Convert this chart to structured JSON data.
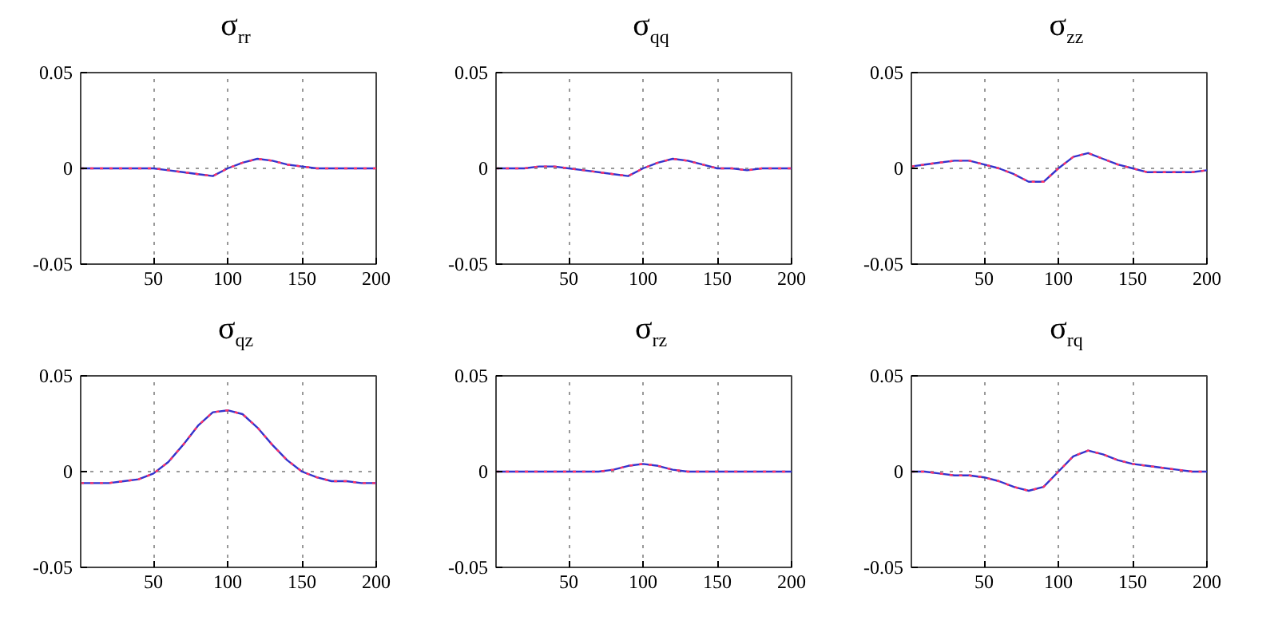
{
  "chart_data": [
    {
      "type": "line",
      "title": "σ$_{rr}$",
      "x": [
        1,
        10,
        20,
        30,
        40,
        50,
        60,
        70,
        80,
        90,
        100,
        110,
        120,
        130,
        140,
        150,
        160,
        170,
        180,
        190,
        200
      ],
      "xlim": [
        1,
        200
      ],
      "xticks": [
        50,
        100,
        150,
        200
      ],
      "ylim": [
        -0.05,
        0.05
      ],
      "yticks": [
        -0.05,
        0,
        0.05
      ],
      "grid": true,
      "series": [
        {
          "color": "#3333cc",
          "line_style": "solid",
          "values": [
            0,
            0,
            0,
            0,
            0,
            0,
            -0.001,
            -0.002,
            -0.003,
            -0.004,
            0,
            0.003,
            0.005,
            0.004,
            0.002,
            0.001,
            0,
            0,
            0,
            0,
            0
          ]
        },
        {
          "color": "#ff3366",
          "line_style": "dotted",
          "values": [
            0,
            0,
            0,
            0,
            0,
            0,
            -0.001,
            -0.002,
            -0.003,
            -0.004,
            0,
            0.003,
            0.005,
            0.004,
            0.002,
            0.001,
            0,
            0,
            0,
            0,
            0
          ]
        }
      ]
    },
    {
      "type": "line",
      "title": "σ$_{qq}$",
      "x": [
        1,
        10,
        20,
        30,
        40,
        50,
        60,
        70,
        80,
        90,
        100,
        110,
        120,
        130,
        140,
        150,
        160,
        170,
        180,
        190,
        200
      ],
      "xlim": [
        1,
        200
      ],
      "xticks": [
        50,
        100,
        150,
        200
      ],
      "ylim": [
        -0.05,
        0.05
      ],
      "yticks": [
        -0.05,
        0,
        0.05
      ],
      "grid": true,
      "series": [
        {
          "color": "#3333cc",
          "line_style": "solid",
          "values": [
            0,
            0,
            0,
            0.001,
            0.001,
            0,
            -0.001,
            -0.002,
            -0.003,
            -0.004,
            0,
            0.003,
            0.005,
            0.004,
            0.002,
            0,
            0,
            -0.001,
            0,
            0,
            0
          ]
        },
        {
          "color": "#ff3366",
          "line_style": "dotted",
          "values": [
            0,
            0,
            0,
            0.001,
            0.001,
            0,
            -0.001,
            -0.002,
            -0.003,
            -0.004,
            0,
            0.003,
            0.005,
            0.004,
            0.002,
            0,
            0,
            -0.001,
            0,
            0,
            0
          ]
        }
      ]
    },
    {
      "type": "line",
      "title": "σ$_{zz}$",
      "x": [
        1,
        10,
        20,
        30,
        40,
        50,
        60,
        70,
        80,
        90,
        100,
        110,
        120,
        130,
        140,
        150,
        160,
        170,
        180,
        190,
        200
      ],
      "xlim": [
        1,
        200
      ],
      "xticks": [
        50,
        100,
        150,
        200
      ],
      "ylim": [
        -0.05,
        0.05
      ],
      "yticks": [
        -0.05,
        0,
        0.05
      ],
      "grid": true,
      "series": [
        {
          "color": "#3333cc",
          "line_style": "solid",
          "values": [
            0.001,
            0.002,
            0.003,
            0.004,
            0.004,
            0.002,
            0,
            -0.003,
            -0.007,
            -0.007,
            0,
            0.006,
            0.008,
            0.005,
            0.002,
            0,
            -0.002,
            -0.002,
            -0.002,
            -0.002,
            -0.001
          ]
        },
        {
          "color": "#ff3366",
          "line_style": "dotted",
          "values": [
            0.001,
            0.002,
            0.003,
            0.004,
            0.004,
            0.002,
            0,
            -0.003,
            -0.007,
            -0.007,
            0,
            0.006,
            0.008,
            0.005,
            0.002,
            0,
            -0.002,
            -0.002,
            -0.002,
            -0.002,
            -0.001
          ]
        }
      ]
    },
    {
      "type": "line",
      "title": "σ$_{qz}$",
      "x": [
        1,
        10,
        20,
        30,
        40,
        50,
        60,
        70,
        80,
        90,
        100,
        110,
        120,
        130,
        140,
        150,
        160,
        170,
        180,
        190,
        200
      ],
      "xlim": [
        1,
        200
      ],
      "xticks": [
        50,
        100,
        150,
        200
      ],
      "ylim": [
        -0.05,
        0.05
      ],
      "yticks": [
        -0.05,
        0,
        0.05
      ],
      "grid": true,
      "series": [
        {
          "color": "#3333cc",
          "line_style": "solid",
          "values": [
            -0.006,
            -0.006,
            -0.006,
            -0.005,
            -0.004,
            -0.001,
            0.005,
            0.014,
            0.024,
            0.031,
            0.032,
            0.03,
            0.023,
            0.014,
            0.006,
            0,
            -0.003,
            -0.005,
            -0.005,
            -0.006,
            -0.006
          ]
        },
        {
          "color": "#ff3366",
          "line_style": "dotted",
          "values": [
            -0.006,
            -0.006,
            -0.006,
            -0.005,
            -0.004,
            -0.001,
            0.005,
            0.014,
            0.024,
            0.031,
            0.032,
            0.03,
            0.023,
            0.014,
            0.006,
            0,
            -0.003,
            -0.005,
            -0.005,
            -0.006,
            -0.006
          ]
        }
      ]
    },
    {
      "type": "line",
      "title": "σ$_{rz}$",
      "x": [
        1,
        10,
        20,
        30,
        40,
        50,
        60,
        70,
        80,
        90,
        100,
        110,
        120,
        130,
        140,
        150,
        160,
        170,
        180,
        190,
        200
      ],
      "xlim": [
        1,
        200
      ],
      "xticks": [
        50,
        100,
        150,
        200
      ],
      "ylim": [
        -0.05,
        0.05
      ],
      "yticks": [
        -0.05,
        0,
        0.05
      ],
      "grid": true,
      "series": [
        {
          "color": "#3333cc",
          "line_style": "solid",
          "values": [
            0,
            0,
            0,
            0,
            0,
            0,
            0,
            0,
            0.001,
            0.003,
            0.004,
            0.003,
            0.001,
            0,
            0,
            0,
            0,
            0,
            0,
            0,
            0
          ]
        },
        {
          "color": "#ff3366",
          "line_style": "dotted",
          "values": [
            0,
            0,
            0,
            0,
            0,
            0,
            0,
            0,
            0.001,
            0.003,
            0.004,
            0.003,
            0.001,
            0,
            0,
            0,
            0,
            0,
            0,
            0,
            0
          ]
        }
      ]
    },
    {
      "type": "line",
      "title": "σ$_{rq}$",
      "x": [
        1,
        10,
        20,
        30,
        40,
        50,
        60,
        70,
        80,
        90,
        100,
        110,
        120,
        130,
        140,
        150,
        160,
        170,
        180,
        190,
        200
      ],
      "xlim": [
        1,
        200
      ],
      "xticks": [
        50,
        100,
        150,
        200
      ],
      "ylim": [
        -0.05,
        0.05
      ],
      "yticks": [
        -0.05,
        0,
        0.05
      ],
      "grid": true,
      "series": [
        {
          "color": "#3333cc",
          "line_style": "solid",
          "values": [
            0,
            0,
            -0.001,
            -0.002,
            -0.002,
            -0.003,
            -0.005,
            -0.008,
            -0.01,
            -0.008,
            0,
            0.008,
            0.011,
            0.009,
            0.006,
            0.004,
            0.003,
            0.002,
            0.001,
            0,
            0
          ]
        },
        {
          "color": "#ff3366",
          "line_style": "dotted",
          "values": [
            0,
            0,
            -0.001,
            -0.002,
            -0.002,
            -0.003,
            -0.005,
            -0.008,
            -0.01,
            -0.008,
            0,
            0.008,
            0.011,
            0.009,
            0.006,
            0.004,
            0.003,
            0.002,
            0.001,
            0,
            0
          ]
        }
      ]
    }
  ]
}
